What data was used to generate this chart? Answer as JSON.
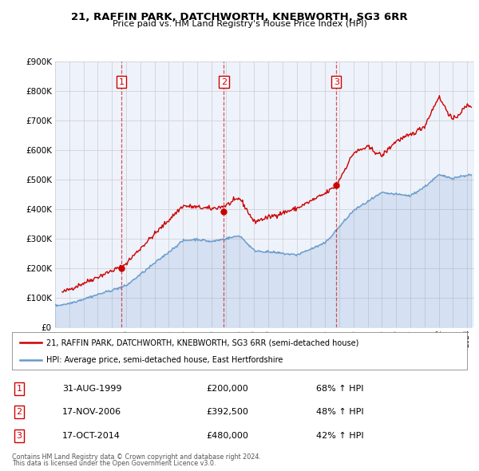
{
  "title": "21, RAFFIN PARK, DATCHWORTH, KNEBWORTH, SG3 6RR",
  "subtitle": "Price paid vs. HM Land Registry's House Price Index (HPI)",
  "red_label": "21, RAFFIN PARK, DATCHWORTH, KNEBWORTH, SG3 6RR (semi-detached house)",
  "blue_label": "HPI: Average price, semi-detached house, East Hertfordshire",
  "ylim": [
    0,
    900000
  ],
  "yticks": [
    0,
    100000,
    200000,
    300000,
    400000,
    500000,
    600000,
    700000,
    800000,
    900000
  ],
  "footer1": "Contains HM Land Registry data © Crown copyright and database right 2024.",
  "footer2": "This data is licensed under the Open Government Licence v3.0.",
  "transactions": [
    {
      "num": "1",
      "date": "31-AUG-1999",
      "price": "£200,000",
      "pct": "68% ↑ HPI",
      "year": 1999.67,
      "price_val": 200000
    },
    {
      "num": "2",
      "date": "17-NOV-2006",
      "price": "£392,500",
      "pct": "48% ↑ HPI",
      "year": 2006.88,
      "price_val": 392500
    },
    {
      "num": "3",
      "date": "17-OCT-2014",
      "price": "£480,000",
      "pct": "42% ↑ HPI",
      "year": 2014.79,
      "price_val": 480000
    }
  ],
  "red_color": "#cc0000",
  "blue_color": "#6699cc",
  "background_color": "#eef2fb",
  "grid_color": "#cccccc",
  "box_color": "#cc0000",
  "xlim_start": 1995.0,
  "xlim_end": 2024.5
}
